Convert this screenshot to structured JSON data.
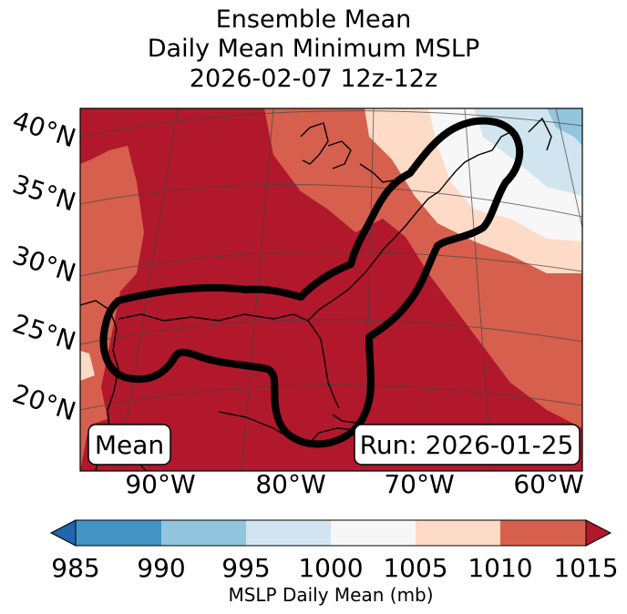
{
  "title": {
    "line1": "Ensemble Mean",
    "line2": "Daily Mean Minimum MSLP",
    "line3": "2026-02-07 12z-12z"
  },
  "map": {
    "lat_labels": [
      "40°N",
      "35°N",
      "30°N",
      "25°N",
      "20°N"
    ],
    "lon_labels": [
      "90°W",
      "80°W",
      "70°W",
      "60°W"
    ],
    "lat_range": [
      15,
      41
    ],
    "lon_range": [
      -96,
      -59
    ],
    "stat_box": "Mean",
    "run_box": "Run: 2026-01-25",
    "contour_color": "#000000"
  },
  "colorbar": {
    "ticks": [
      "985",
      "990",
      "995",
      "1000",
      "1005",
      "1010",
      "1015"
    ],
    "label": "MSLP Daily Mean (mb)",
    "colors": [
      "#2166ac",
      "#4393c3",
      "#92c5de",
      "#d1e5f0",
      "#f7f7f7",
      "#fddbc7",
      "#d6604d",
      "#b2182b"
    ]
  }
}
